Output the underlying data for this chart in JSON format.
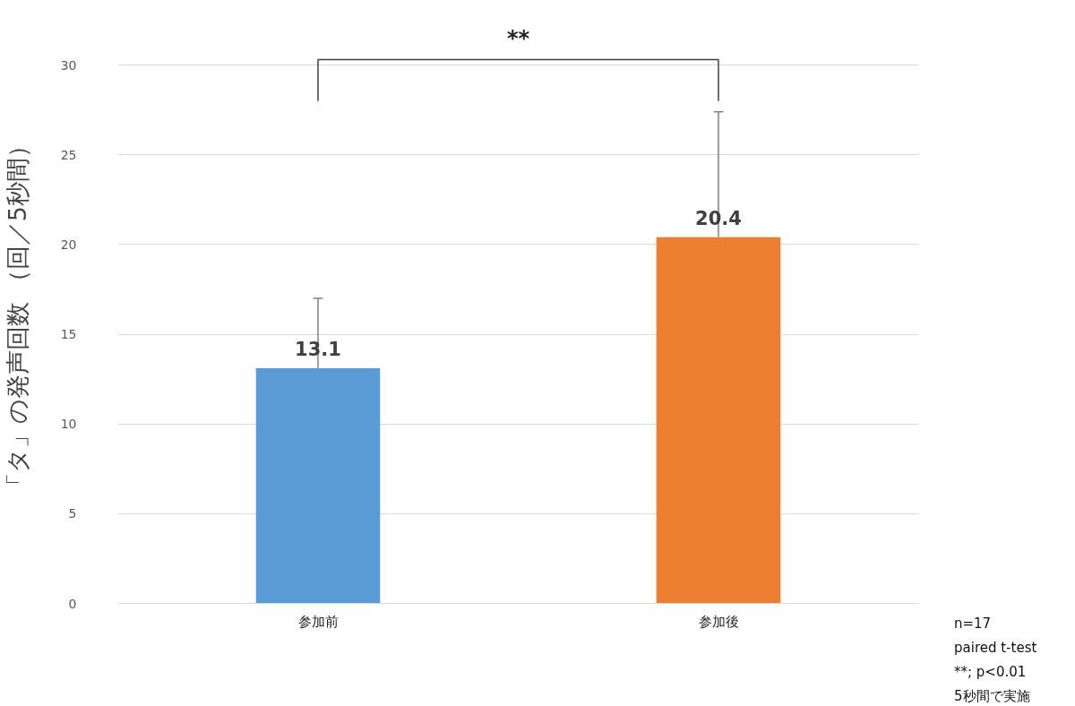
{
  "chart_data": {
    "type": "bar",
    "ylabel": "「タ」の発声回数 （回／5秒間）",
    "categories": [
      "参加前",
      "参加後"
    ],
    "values": [
      13.1,
      20.4
    ],
    "colors": [
      "#5b9bd5",
      "#ed7d31"
    ],
    "errors": [
      [
        13.1,
        17.0
      ],
      [
        20.4,
        27.4
      ]
    ],
    "data_labels": true,
    "ylim": [
      0,
      30
    ],
    "yticks": [
      0,
      5,
      10,
      15,
      20,
      25,
      30
    ],
    "grid": "y",
    "annotations": [
      "**",
      "n=17",
      "paired t-test",
      "**;  p<0.01",
      "5秒間で実施"
    ]
  }
}
